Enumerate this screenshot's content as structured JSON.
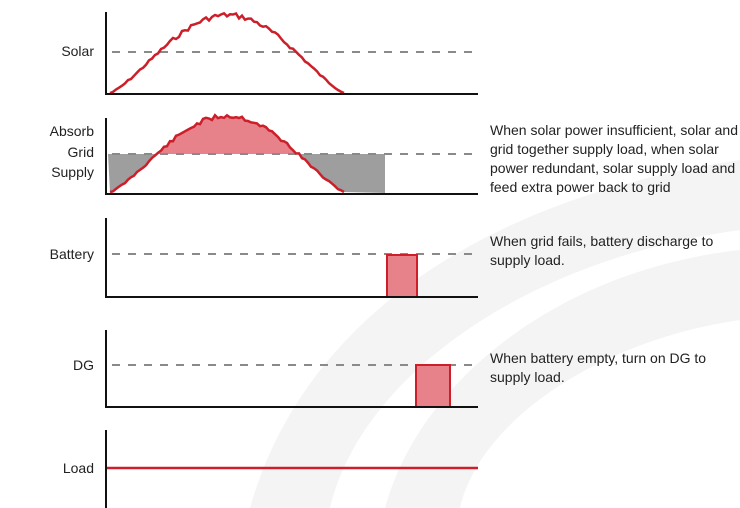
{
  "rows": {
    "solar": {
      "label": "Solar"
    },
    "grid": {
      "label_line1": "Absorb",
      "label_line2": "Grid",
      "label_line3": "Supply"
    },
    "battery": {
      "label": "Battery"
    },
    "dg": {
      "label": "DG"
    },
    "load": {
      "label": "Load"
    }
  },
  "descriptions": {
    "grid": "When solar power insufficient, solar and grid together supply load, when solar power redundant, solar supply load and feed extra power back to grid",
    "battery": "When grid fails, battery discharge to supply load.",
    "dg": "When battery empty, turn on DG to supply load."
  },
  "colors": {
    "curve": "#cc1f2a",
    "curve_fill": "#e8828a",
    "grid_fill": "#9e9e9e",
    "axis": "#111111",
    "dashed": "#8a8a8a",
    "watermark": "#f3f3f3"
  }
}
